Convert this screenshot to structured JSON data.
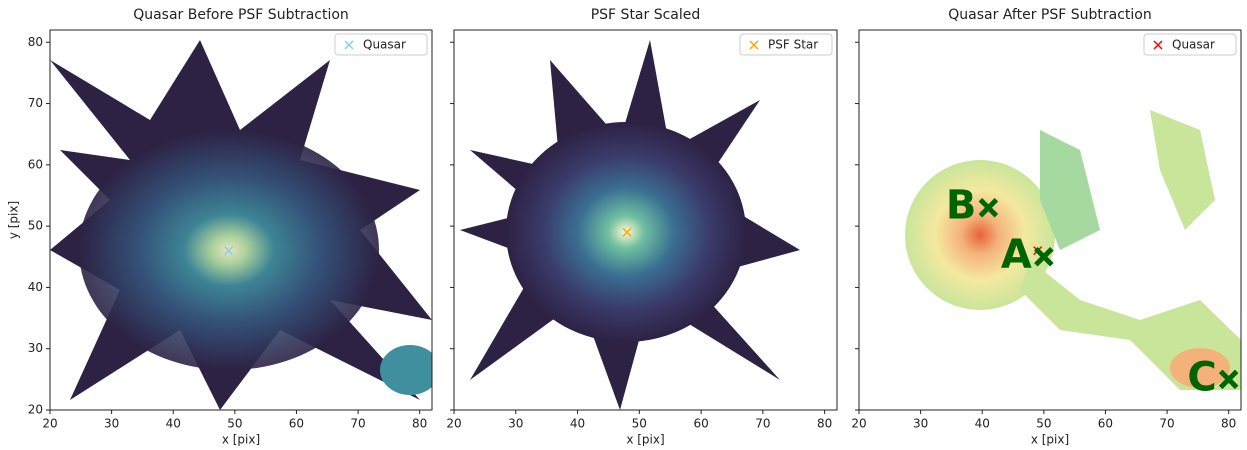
{
  "chart_data": [
    {
      "type": "scatter",
      "title": "Quasar Before PSF Subtraction",
      "xlabel": "x [pix]",
      "ylabel": "y [pix]",
      "xlim": [
        20,
        82
      ],
      "ylim": [
        20,
        82
      ],
      "xticks": [
        20,
        30,
        40,
        50,
        60,
        70,
        80
      ],
      "yticks": [
        20,
        30,
        40,
        50,
        60,
        70,
        80
      ],
      "ytick_labels": true,
      "legend": "upper right",
      "series": [
        {
          "name": "Quasar",
          "color": "#87ceeb",
          "marker": "x",
          "x": [
            49
          ],
          "y": [
            46
          ]
        }
      ]
    },
    {
      "type": "scatter",
      "title": "PSF Star Scaled",
      "xlabel": "x [pix]",
      "xlim": [
        20,
        82
      ],
      "ylim": [
        20,
        82
      ],
      "xticks": [
        20,
        30,
        40,
        50,
        60,
        70,
        80
      ],
      "yticks": [
        20,
        30,
        40,
        50,
        60,
        70,
        80
      ],
      "ytick_labels": false,
      "legend": "upper right",
      "series": [
        {
          "name": "PSF Star",
          "color": "#ffa500",
          "marker": "x",
          "x": [
            48
          ],
          "y": [
            49
          ]
        }
      ]
    },
    {
      "type": "scatter",
      "title": "Quasar After PSF Subtraction",
      "xlabel": "x [pix]",
      "xlim": [
        20,
        82
      ],
      "ylim": [
        20,
        82
      ],
      "xticks": [
        20,
        30,
        40,
        50,
        60,
        70,
        80
      ],
      "yticks": [
        20,
        30,
        40,
        50,
        60,
        70,
        80
      ],
      "ytick_labels": false,
      "legend": "upper right",
      "series": [
        {
          "name": "Quasar",
          "color": "#ff0000",
          "marker": "x",
          "x": [
            49
          ],
          "y": [
            46
          ]
        }
      ],
      "annotations": [
        {
          "text": "B",
          "x": 41,
          "y": 53,
          "color": "#006400"
        },
        {
          "text": "A",
          "x": 50,
          "y": 45,
          "color": "#006400"
        },
        {
          "text": "C",
          "x": 80,
          "y": 25,
          "color": "#006400"
        }
      ]
    }
  ]
}
